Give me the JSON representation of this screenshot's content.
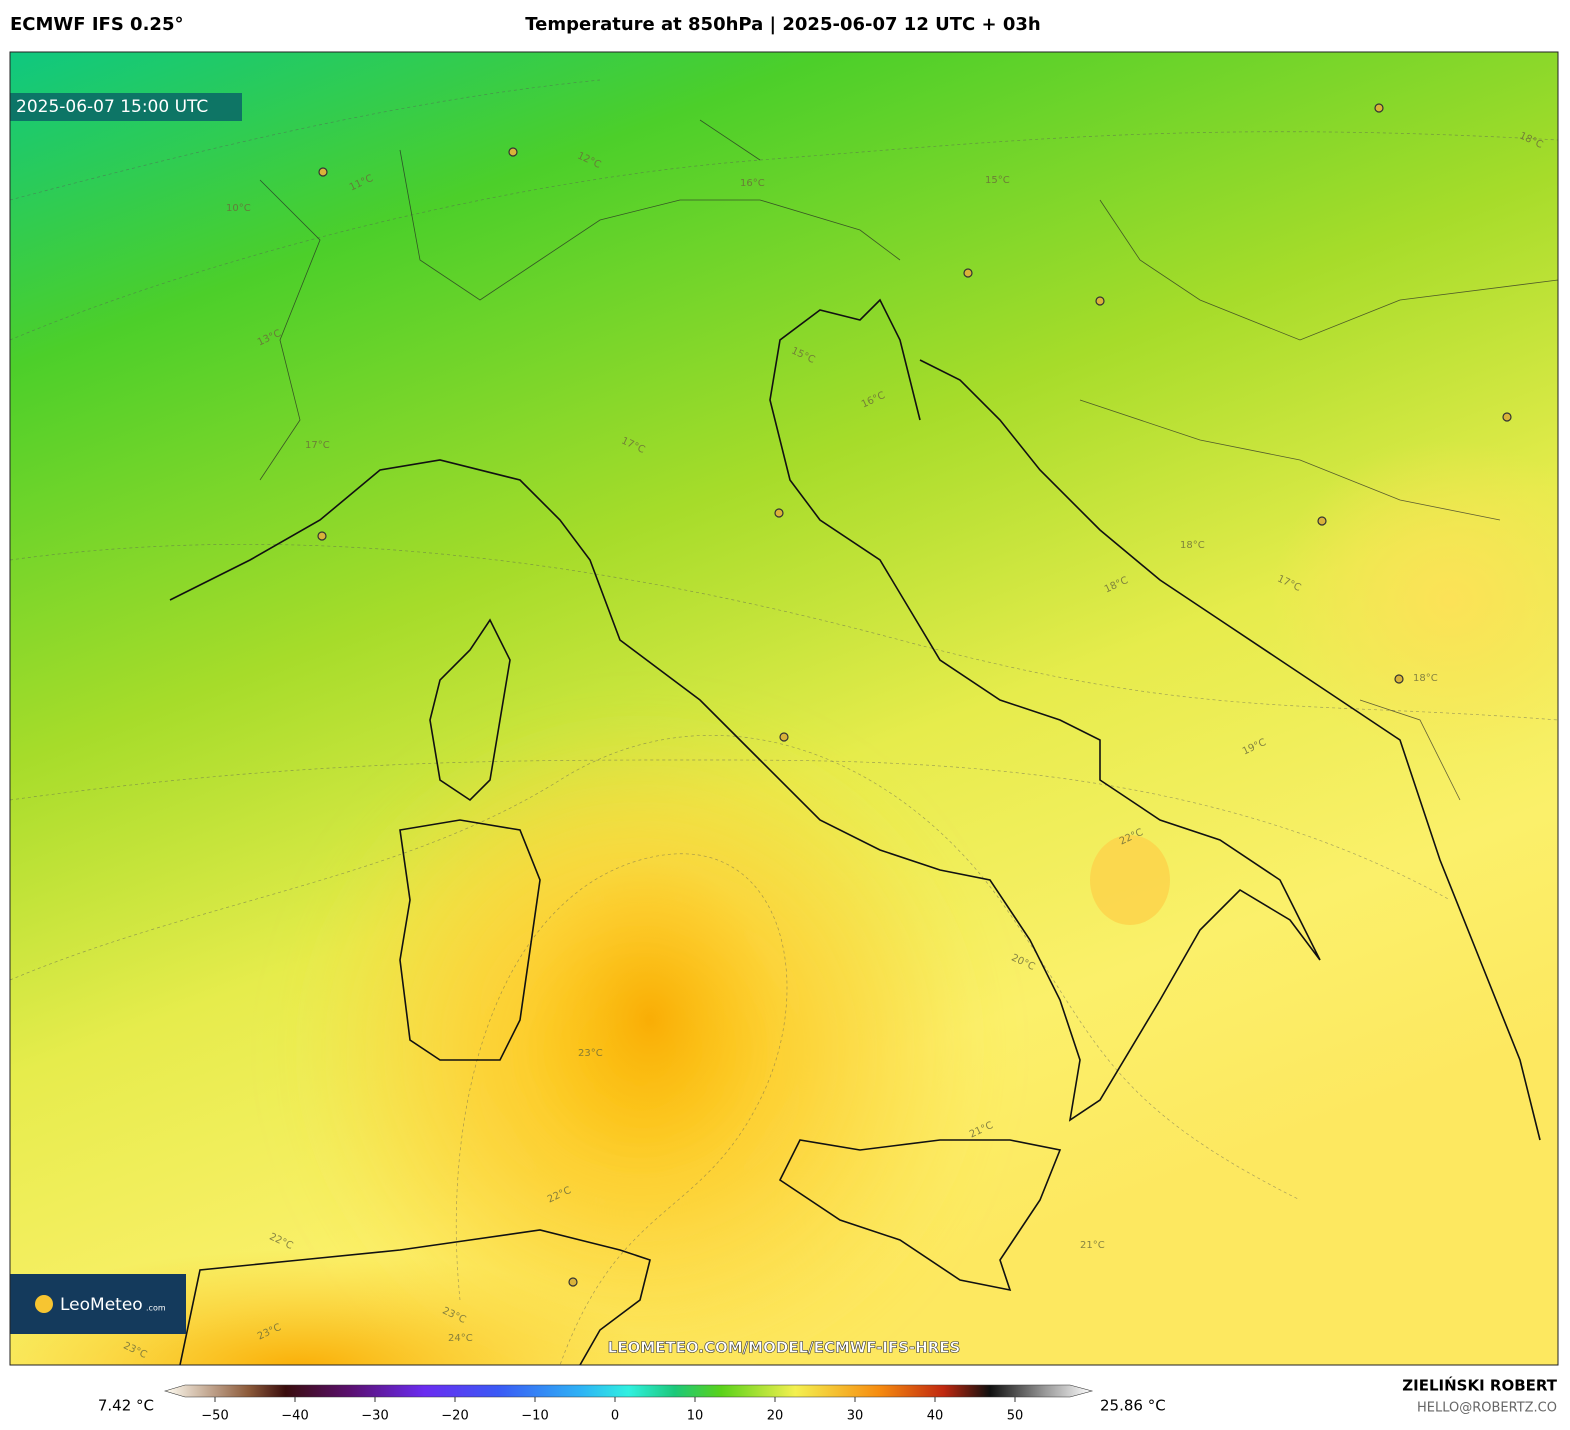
{
  "header": {
    "model": "ECMWF IFS 0.25°",
    "title": "Temperature at 850hPa | 2025-06-07 12 UTC + 03h"
  },
  "timestamp": "2025-06-07 15:00 UTC",
  "contour_labels": [
    "11°C",
    "10°C",
    "12°C",
    "13°C",
    "16°C",
    "15°C",
    "16°C",
    "17°C",
    "17°C",
    "18°C",
    "18°C",
    "17°C",
    "19°C",
    "18°C",
    "20°C",
    "21°C",
    "21°C",
    "22°C",
    "22°C",
    "23°C",
    "23°C",
    "23°C",
    "24°C",
    "23°C",
    "22°C",
    "15°C",
    "18°C"
  ],
  "watermark": "LEOMETEO.COM/MODEL/ECMWF-IFS-HRES",
  "logo": {
    "name": "LeoMeteo",
    "suffix": ".com"
  },
  "author": {
    "name": "ZIELIŃSKI ROBERT",
    "contact": "HELLO@ROBERTZ.CO"
  },
  "colorbar": {
    "min_label": "7.42 °C",
    "max_label": "25.86 °C",
    "lim": [
      -55,
      55
    ],
    "ticks": [
      {
        "value": -50,
        "label": "−50"
      },
      {
        "value": -40,
        "label": "−40"
      },
      {
        "value": -30,
        "label": "−30"
      },
      {
        "value": -20,
        "label": "−20"
      },
      {
        "value": -10,
        "label": "−10"
      },
      0,
      10,
      20,
      30,
      40,
      50
    ]
  }
}
